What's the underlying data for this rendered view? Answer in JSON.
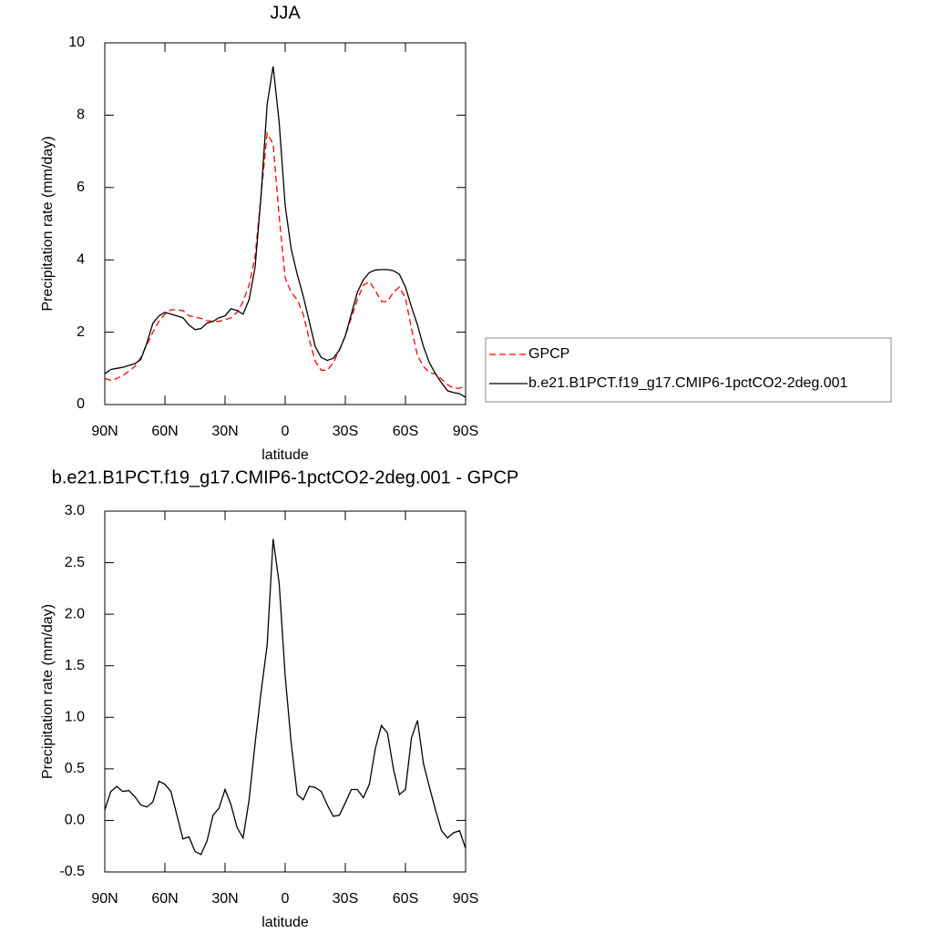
{
  "chart_data": [
    {
      "type": "line",
      "title": "JJA",
      "x_label": "latitude",
      "y_label": "Precipitation rate (mm/day)",
      "x": [
        90,
        87,
        84,
        81,
        78,
        75,
        72,
        69,
        66,
        63,
        60,
        57,
        54,
        51,
        48,
        45,
        42,
        39,
        36,
        33,
        30,
        27,
        24,
        21,
        18,
        15,
        12,
        9,
        6,
        3,
        0,
        -3,
        -6,
        -9,
        -12,
        -15,
        -18,
        -21,
        -24,
        -27,
        -30,
        -33,
        -36,
        -39,
        -42,
        -45,
        -48,
        -51,
        -54,
        -57,
        -60,
        -63,
        -66,
        -69,
        -72,
        -75,
        -78,
        -81,
        -84,
        -87,
        -90
      ],
      "xlim": [
        90,
        -90
      ],
      "xticks": [
        {
          "value": 90,
          "label": "90N"
        },
        {
          "value": 60,
          "label": "60N"
        },
        {
          "value": 30,
          "label": "30N"
        },
        0,
        {
          "value": -30,
          "label": "30S"
        },
        {
          "value": -60,
          "label": "60S"
        },
        {
          "value": -90,
          "label": "90S"
        }
      ],
      "ylim": [
        0,
        10
      ],
      "yticks": [
        0,
        2,
        4,
        6,
        8,
        10
      ],
      "legend": "right",
      "series": [
        {
          "name": "GPCP",
          "color": "#ff0000",
          "dashed": true,
          "values": [
            0.72,
            0.67,
            0.72,
            0.8,
            0.92,
            1.05,
            1.3,
            1.65,
            2.0,
            2.3,
            2.5,
            2.62,
            2.62,
            2.6,
            2.45,
            2.42,
            2.38,
            2.32,
            2.3,
            2.3,
            2.35,
            2.4,
            2.55,
            2.85,
            3.3,
            4.1,
            5.8,
            7.5,
            7.2,
            5.2,
            3.5,
            3.1,
            2.9,
            2.5,
            1.8,
            1.2,
            0.95,
            0.95,
            1.15,
            1.5,
            1.9,
            2.4,
            2.9,
            3.3,
            3.4,
            3.15,
            2.85,
            2.85,
            3.1,
            3.25,
            2.95,
            2.1,
            1.35,
            1.05,
            0.88,
            0.85,
            0.7,
            0.55,
            0.45,
            0.45,
            0.52
          ]
        },
        {
          "name": "b.e21.B1PCT.f19_g17.CMIP6-1pctCO2-2deg.001",
          "color": "#000000",
          "dashed": false,
          "values": [
            0.85,
            0.97,
            1.0,
            1.03,
            1.08,
            1.13,
            1.25,
            1.7,
            2.25,
            2.45,
            2.55,
            2.5,
            2.45,
            2.4,
            2.2,
            2.07,
            2.1,
            2.25,
            2.3,
            2.4,
            2.45,
            2.65,
            2.6,
            2.5,
            2.9,
            3.8,
            5.8,
            8.3,
            9.35,
            7.8,
            5.5,
            4.3,
            3.6,
            3.0,
            2.3,
            1.6,
            1.3,
            1.22,
            1.28,
            1.5,
            1.9,
            2.5,
            3.1,
            3.45,
            3.65,
            3.72,
            3.73,
            3.73,
            3.7,
            3.6,
            3.25,
            2.7,
            2.2,
            1.6,
            1.15,
            0.85,
            0.6,
            0.38,
            0.33,
            0.3,
            0.2
          ]
        }
      ]
    },
    {
      "type": "line",
      "title": "b.e21.B1PCT.f19_g17.CMIP6-1pctCO2-2deg.001 - GPCP",
      "x_label": "latitude",
      "y_label": "Precipitation rate (mm/day)",
      "x": [
        90,
        87,
        84,
        81,
        78,
        75,
        72,
        69,
        66,
        63,
        60,
        57,
        54,
        51,
        48,
        45,
        42,
        39,
        36,
        33,
        30,
        27,
        24,
        21,
        18,
        15,
        12,
        9,
        6,
        3,
        0,
        -3,
        -6,
        -9,
        -12,
        -15,
        -18,
        -21,
        -24,
        -27,
        -30,
        -33,
        -36,
        -39,
        -42,
        -45,
        -48,
        -51,
        -54,
        -57,
        -60,
        -63,
        -66,
        -69,
        -72,
        -75,
        -78,
        -81,
        -84,
        -87,
        -90
      ],
      "xlim": [
        90,
        -90
      ],
      "xticks": [
        {
          "value": 90,
          "label": "90N"
        },
        {
          "value": 60,
          "label": "60N"
        },
        {
          "value": 30,
          "label": "30N"
        },
        0,
        {
          "value": -30,
          "label": "30S"
        },
        {
          "value": -60,
          "label": "60S"
        },
        {
          "value": -90,
          "label": "90S"
        }
      ],
      "ylim": [
        -0.5,
        3.0
      ],
      "yticks": [
        -0.5,
        {
          "value": 0,
          "label": "0.0"
        },
        0.5,
        {
          "value": 1,
          "label": "1.0"
        },
        1.5,
        {
          "value": 2,
          "label": "2.0"
        },
        2.5,
        {
          "value": 3,
          "label": "3.0"
        }
      ],
      "series": [
        {
          "color": "#000000",
          "dashed": false,
          "values": [
            0.1,
            0.28,
            0.33,
            0.28,
            0.29,
            0.23,
            0.15,
            0.13,
            0.18,
            0.38,
            0.35,
            0.28,
            0.05,
            -0.18,
            -0.16,
            -0.3,
            -0.33,
            -0.2,
            0.05,
            0.12,
            0.3,
            0.15,
            -0.07,
            -0.17,
            0.2,
            0.75,
            1.25,
            1.7,
            2.73,
            2.3,
            1.4,
            0.75,
            0.25,
            0.2,
            0.33,
            0.32,
            0.28,
            0.15,
            0.04,
            0.05,
            0.17,
            0.3,
            0.3,
            0.22,
            0.35,
            0.7,
            0.92,
            0.85,
            0.5,
            0.25,
            0.3,
            0.8,
            0.97,
            0.55,
            0.32,
            0.1,
            -0.1,
            -0.17,
            -0.12,
            -0.1,
            -0.27
          ]
        }
      ]
    }
  ]
}
